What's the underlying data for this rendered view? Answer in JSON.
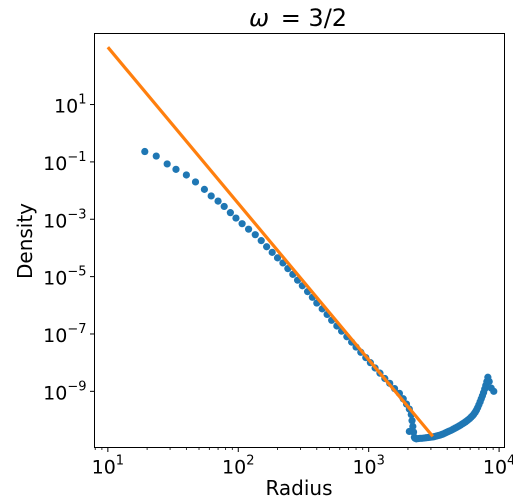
{
  "chart_data": {
    "type": "scatter",
    "title_var": "ω",
    "title_value": "= 3/2",
    "xlabel": "Radius",
    "ylabel": "Density",
    "xscale": "log",
    "yscale": "log",
    "xlim": [
      7.9,
      11000
    ],
    "ylim": [
      1.1e-11,
      3000
    ],
    "xticks": [
      {
        "value": 10,
        "base": "10",
        "exp": "1"
      },
      {
        "value": 100,
        "base": "10",
        "exp": "2"
      },
      {
        "value": 1000,
        "base": "10",
        "exp": "3"
      },
      {
        "value": 10000,
        "base": "10",
        "exp": "4"
      }
    ],
    "yticks": [
      {
        "value": 10,
        "base": "10",
        "exp": "1"
      },
      {
        "value": 0.1,
        "base": "10",
        "exp": "−1"
      },
      {
        "value": 0.001,
        "base": "10",
        "exp": "−3"
      },
      {
        "value": 1e-05,
        "base": "10",
        "exp": "−5"
      },
      {
        "value": 1e-07,
        "base": "10",
        "exp": "−7"
      },
      {
        "value": 1e-09,
        "base": "10",
        "exp": "−9"
      }
    ],
    "grid": false,
    "series": [
      {
        "kind": "scatter",
        "color": "#1f77b4",
        "points": [
          [
            19.2,
            0.23
          ],
          [
            23.5,
            0.16
          ],
          [
            28.5,
            0.085
          ],
          [
            33.3,
            0.055
          ],
          [
            40.0,
            0.035
          ],
          [
            47.0,
            0.02
          ],
          [
            55.0,
            0.011
          ],
          [
            62.0,
            0.0065
          ],
          [
            70.0,
            0.0043
          ],
          [
            78.0,
            0.0028
          ],
          [
            87.0,
            0.0017
          ],
          [
            96.0,
            0.0011
          ],
          [
            107,
            0.0007
          ],
          [
            120,
            0.00045
          ],
          [
            135,
            0.00029
          ],
          [
            150,
            0.00018
          ],
          [
            165,
            0.00011
          ],
          [
            182,
            7e-05
          ],
          [
            200,
            4.5e-05
          ],
          [
            220,
            3e-05
          ],
          [
            240,
            1.9e-05
          ],
          [
            262,
            1.2e-05
          ],
          [
            285,
            7.5e-06
          ],
          [
            310,
            4.8e-06
          ],
          [
            340,
            3e-06
          ],
          [
            370,
            1.9e-06
          ],
          [
            400,
            1.2e-06
          ],
          [
            440,
            7.5e-07
          ],
          [
            480,
            4.8e-07
          ],
          [
            520,
            3e-07
          ],
          [
            570,
            1.9e-07
          ],
          [
            620,
            1.25e-07
          ],
          [
            680,
            8e-08
          ],
          [
            740,
            5.2e-08
          ],
          [
            800,
            3.5e-08
          ],
          [
            870,
            2.3e-08
          ],
          [
            950,
            1.5e-08
          ],
          [
            1030,
            1e-08
          ],
          [
            1120,
            6.5e-09
          ],
          [
            1220,
            4.3e-09
          ],
          [
            1330,
            2.8e-09
          ],
          [
            1450,
            1.9e-09
          ],
          [
            1580,
            1.25e-09
          ],
          [
            1720,
            8.5e-10
          ],
          [
            1840,
            5.5e-10
          ],
          [
            1950,
            3.6e-10
          ],
          [
            2050,
            2.4e-10
          ],
          [
            2120,
            1.55e-10
          ],
          [
            2150,
            9.5e-11
          ],
          [
            2180,
            6e-11
          ],
          [
            2210,
            3.8e-11
          ],
          [
            2240,
            2.5e-11
          ],
          [
            2270,
            2.3e-11
          ],
          [
            2320,
            2.2e-11
          ],
          [
            2400,
            2.25e-11
          ],
          [
            2480,
            2.3e-11
          ],
          [
            2560,
            2.3e-11
          ],
          [
            2650,
            2.35e-11
          ],
          [
            2750,
            2.4e-11
          ],
          [
            2850,
            2.45e-11
          ],
          [
            2950,
            2.5e-11
          ],
          [
            3050,
            2.55e-11
          ],
          [
            3150,
            2.6e-11
          ],
          [
            3250,
            2.7e-11
          ],
          [
            3350,
            2.8e-11
          ],
          [
            3450,
            2.9e-11
          ],
          [
            3550,
            3e-11
          ],
          [
            3650,
            3.15e-11
          ],
          [
            3750,
            3.3e-11
          ],
          [
            3850,
            3.5e-11
          ],
          [
            3950,
            3.7e-11
          ],
          [
            4050,
            3.9e-11
          ],
          [
            4150,
            4.1e-11
          ],
          [
            4300,
            4.4e-11
          ],
          [
            4450,
            4.8e-11
          ],
          [
            4600,
            5.2e-11
          ],
          [
            4750,
            5.6e-11
          ],
          [
            4900,
            6.1e-11
          ],
          [
            5050,
            6.6e-11
          ],
          [
            5200,
            7.2e-11
          ],
          [
            5350,
            7.8e-11
          ],
          [
            5500,
            8.5e-11
          ],
          [
            5650,
            9.3e-11
          ],
          [
            5800,
            1.02e-10
          ],
          [
            5950,
            1.12e-10
          ],
          [
            6100,
            1.25e-10
          ],
          [
            6250,
            1.4e-10
          ],
          [
            6400,
            1.6e-10
          ],
          [
            6550,
            1.85e-10
          ],
          [
            6700,
            2.2e-10
          ],
          [
            6850,
            2.7e-10
          ],
          [
            7000,
            3.4e-10
          ],
          [
            7150,
            4.3e-10
          ],
          [
            7300,
            5.5e-10
          ],
          [
            7450,
            7e-10
          ],
          [
            7600,
            9e-10
          ],
          [
            7750,
            1.2e-09
          ],
          [
            7900,
            1.6e-09
          ],
          [
            8050,
            2.2e-09
          ],
          [
            8200,
            3.1e-09
          ],
          [
            8400,
            2.2e-09
          ],
          [
            8700,
            1.3e-09
          ],
          [
            9100,
            1e-09
          ],
          [
            2050,
            4e-11
          ]
        ]
      },
      {
        "kind": "line",
        "color": "#ff7f0e",
        "points": [
          [
            10,
            1000
          ],
          [
            3100,
            2.68e-11
          ]
        ]
      }
    ]
  }
}
